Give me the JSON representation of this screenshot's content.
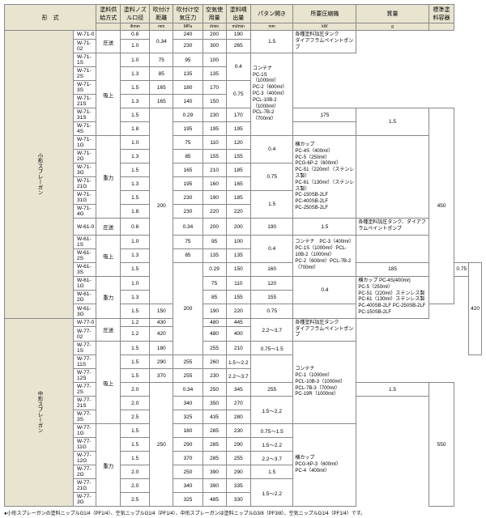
{
  "headers": [
    "形　式",
    "塗料供給方式",
    "塗料ノズル口径",
    "吹付け距離",
    "吹付け空気圧力",
    "空気使用量",
    "塗料噴出量",
    "パタン開き",
    "所要圧縮機",
    "質量",
    "標準塗料容器"
  ],
  "subheaders": [
    "",
    "",
    "Φmm",
    "mm",
    "MPa",
    "ℓ/min",
    "mℓ/min",
    "mm",
    "kW",
    "g",
    ""
  ],
  "cat1": "小形スプレーガン",
  "cat2": "中形スプレーガン",
  "g1": [
    {
      "m": "W-71-0",
      "s": "圧送",
      "d": "0.8",
      "dist": "",
      "p": "0.34",
      "a": "240",
      "f": "200",
      "pat": "190",
      "kw": "1.5",
      "wt": ""
    },
    {
      "m": "W-71-02",
      "s": "",
      "d": "1.0",
      "dist": "",
      "p": "",
      "a": "230",
      "f": "300",
      "pat": "265",
      "kw": "",
      "wt": ""
    },
    {
      "m": "W-71-1S",
      "s": "吸上",
      "d": "1.0",
      "dist": "",
      "p": "",
      "a": "75",
      "f": "95",
      "pat": "100",
      "kw": "0.4",
      "wt": ""
    },
    {
      "m": "W-71-2S",
      "s": "",
      "d": "1.3",
      "dist": "",
      "p": "",
      "a": "85",
      "f": "135",
      "pat": "135",
      "kw": "",
      "wt": ""
    },
    {
      "m": "W-71-3S",
      "s": "",
      "d": "1.5",
      "dist": "",
      "p": "",
      "a": "165",
      "f": "180",
      "pat": "170",
      "kw": "0.75",
      "wt": ""
    },
    {
      "m": "W-71-21S",
      "s": "",
      "d": "1.3",
      "dist": "",
      "p": "",
      "a": "165",
      "f": "140",
      "pat": "150",
      "kw": "",
      "wt": ""
    },
    {
      "m": "W-71-31S",
      "s": "",
      "d": "1.5",
      "dist": "200",
      "p": "0.29",
      "a": "230",
      "f": "170",
      "pat": "175",
      "kw": "1.5",
      "wt": "450"
    },
    {
      "m": "W-71-4S",
      "s": "",
      "d": "1.8",
      "dist": "",
      "p": "",
      "a": "195",
      "f": "195",
      "pat": "195",
      "kw": "",
      "wt": ""
    },
    {
      "m": "W-71-1G",
      "s": "重力",
      "d": "1.0",
      "dist": "",
      "p": "",
      "a": "75",
      "f": "110",
      "pat": "120",
      "kw": "0.4",
      "wt": ""
    },
    {
      "m": "W-71-2G",
      "s": "",
      "d": "1.3",
      "dist": "",
      "p": "",
      "a": "85",
      "f": "155",
      "pat": "155",
      "kw": "",
      "wt": ""
    },
    {
      "m": "W-71-3G",
      "s": "",
      "d": "1.5",
      "dist": "",
      "p": "",
      "a": "165",
      "f": "210",
      "pat": "185",
      "kw": "0.75",
      "wt": ""
    },
    {
      "m": "W-71-21G",
      "s": "",
      "d": "1.3",
      "dist": "",
      "p": "",
      "a": "195",
      "f": "160",
      "pat": "165",
      "kw": "",
      "wt": ""
    },
    {
      "m": "W-71-31G",
      "s": "",
      "d": "1.5",
      "dist": "",
      "p": "",
      "a": "230",
      "f": "190",
      "pat": "185",
      "kw": "1.5",
      "wt": ""
    },
    {
      "m": "W-71-4G",
      "s": "",
      "d": "1.8",
      "dist": "",
      "p": "",
      "a": "230",
      "f": "220",
      "pat": "220",
      "kw": "",
      "wt": ""
    }
  ],
  "g2": [
    {
      "m": "W-61-0",
      "s": "圧送",
      "d": "0.8",
      "dist": "",
      "p": "0.34",
      "a": "200",
      "f": "200",
      "pat": "190",
      "kw": "1.5",
      "wt": ""
    },
    {
      "m": "W-61-1S",
      "s": "吸上",
      "d": "1.0",
      "dist": "",
      "p": "",
      "a": "75",
      "f": "95",
      "pat": "100",
      "kw": "0.4",
      "wt": ""
    },
    {
      "m": "W-61-2S",
      "s": "",
      "d": "1.3",
      "dist": "",
      "p": "",
      "a": "85",
      "f": "135",
      "pat": "135",
      "kw": "",
      "wt": ""
    },
    {
      "m": "W-61-3S",
      "s": "",
      "d": "1.5",
      "dist": "200",
      "p": "0.29",
      "a": "150",
      "f": "160",
      "pat": "185",
      "kw": "0.75",
      "wt": "420"
    },
    {
      "m": "W-61-1G",
      "s": "重力",
      "d": "1.0",
      "dist": "",
      "p": "",
      "a": "75",
      "f": "110",
      "pat": "120",
      "kw": "0.4",
      "wt": ""
    },
    {
      "m": "W-61-2G",
      "s": "",
      "d": "1.3",
      "dist": "",
      "p": "",
      "a": "85",
      "f": "155",
      "pat": "155",
      "kw": "",
      "wt": ""
    },
    {
      "m": "W-61-3G",
      "s": "",
      "d": "1.5",
      "dist": "",
      "p": "",
      "a": "150",
      "f": "190",
      "pat": "220",
      "kw": "0.75",
      "wt": ""
    }
  ],
  "g3": [
    {
      "m": "W-77-0",
      "s": "圧送",
      "d": "1.2",
      "dist": "",
      "p": "",
      "a": "430",
      "f": "480",
      "pat": "445",
      "kw": "2.2～3.7",
      "wt": ""
    },
    {
      "m": "W-77-02",
      "s": "",
      "d": "1.2",
      "dist": "",
      "p": "",
      "a": "420",
      "f": "480",
      "pat": "400",
      "kw": "",
      "wt": ""
    },
    {
      "m": "W-77-1S",
      "s": "吸上",
      "d": "1.5",
      "dist": "",
      "p": "",
      "a": "180",
      "f": "255",
      "pat": "210",
      "kw": "0.75～1.5",
      "wt": ""
    },
    {
      "m": "W-77-11S",
      "s": "",
      "d": "1.5",
      "dist": "",
      "p": "",
      "a": "290",
      "f": "255",
      "pat": "260",
      "kw": "1.5～2.2",
      "wt": ""
    },
    {
      "m": "W-77-12S",
      "s": "",
      "d": "1.5",
      "dist": "",
      "p": "",
      "a": "370",
      "f": "255",
      "pat": "230",
      "kw": "2.2～3.7",
      "wt": ""
    },
    {
      "m": "W-77-2S",
      "s": "",
      "d": "2.0",
      "dist": "250",
      "p": "0.34",
      "a": "250",
      "f": "345",
      "pat": "255",
      "kw": "1.5",
      "wt": "550"
    },
    {
      "m": "W-77-21S",
      "s": "",
      "d": "2.0",
      "dist": "",
      "p": "",
      "a": "340",
      "f": "350",
      "pat": "270",
      "kw": "1.5～2.2",
      "wt": ""
    },
    {
      "m": "W-77-3S",
      "s": "",
      "d": "2.5",
      "dist": "",
      "p": "",
      "a": "325",
      "f": "435",
      "pat": "280",
      "kw": "",
      "wt": ""
    },
    {
      "m": "W-77-1G",
      "s": "重力",
      "d": "1.5",
      "dist": "",
      "p": "",
      "a": "180",
      "f": "285",
      "pat": "230",
      "kw": "0.75～1.5",
      "wt": ""
    },
    {
      "m": "W-77-11G",
      "s": "",
      "d": "1.5",
      "dist": "",
      "p": "",
      "a": "290",
      "f": "285",
      "pat": "290",
      "kw": "1.5～2.2",
      "wt": ""
    },
    {
      "m": "W-77-12G",
      "s": "",
      "d": "1.5",
      "dist": "",
      "p": "",
      "a": "370",
      "f": "285",
      "pat": "255",
      "kw": "2.2～3.7",
      "wt": ""
    },
    {
      "m": "W-77-2G",
      "s": "",
      "d": "2.0",
      "dist": "",
      "p": "",
      "a": "250",
      "f": "390",
      "pat": "290",
      "kw": "1.5",
      "wt": ""
    },
    {
      "m": "W-77-21G",
      "s": "",
      "d": "2.0",
      "dist": "",
      "p": "",
      "a": "340",
      "f": "390",
      "pat": "335",
      "kw": "1.5～2.2",
      "wt": ""
    },
    {
      "m": "W-77-3G",
      "s": "",
      "d": "2.5",
      "dist": "",
      "p": "",
      "a": "325",
      "f": "485",
      "pat": "330",
      "kw": "",
      "wt": ""
    }
  ],
  "r1": "各種塗料加圧タンク\nダイアフラムペイントポンプ",
  "r2": "コンテナ\nPC-1S（1000mℓ）\nPC-2（600mℓ）\nPC-3（400mℓ）\nPCL-10B-2（1000mℓ）\nPCL-7B-2（700mℓ）",
  "r3": "横カップ\nPC-4S（400mℓ）\nPC-5（250mℓ）\nPCG-6P-2（600mℓ）\nPC-51（220mℓ）（ステンレス製）\nPC-61（130mℓ）（ステンレス製）\nPC-150SB-2LF\nPC-400SB-2LF\nPC-250SB-2LF",
  "r4": "各種塗料加圧タンク、ダイアフラムペイントポンプ",
  "r5": "コンテナ　PC-3（400mℓ）\nPC-1S（1000mℓ）PCL-10B-2（1000mℓ）\nPC-2（600mℓ）PCL-7B-2（700mℓ）",
  "r6": "横カップ PC-4S(400mℓ)\nPC-5（250mℓ）\nPC-51（220mℓ）ステンレス製\nPC-61（130mℓ）ステンレス製\nPC-400SB-2LF PC-250SB-2LF PC-150SB-2LF",
  "r7": "各種塗料加圧タンク\nダイアフラムペイントポンプ",
  "r8": "コンテナ\nPC-1（1000mℓ）\nPCL-10B-3（1000mℓ）\nPCL-7B-3（700mℓ）\nPC-19R（1000mℓ）",
  "r9": "横カップ\nPCG-6P-3（600mℓ）\nPC-4（400mℓ）",
  "foot": "●小形スプレーガンの塗料ニップルG1/4（PF1/4）、空気ニップルG1/4（PF1/4）、中形スプレーガンは塗料ニップルG3/8（PF3/8）、空気ニップルG1/4（PF1/4）です。"
}
